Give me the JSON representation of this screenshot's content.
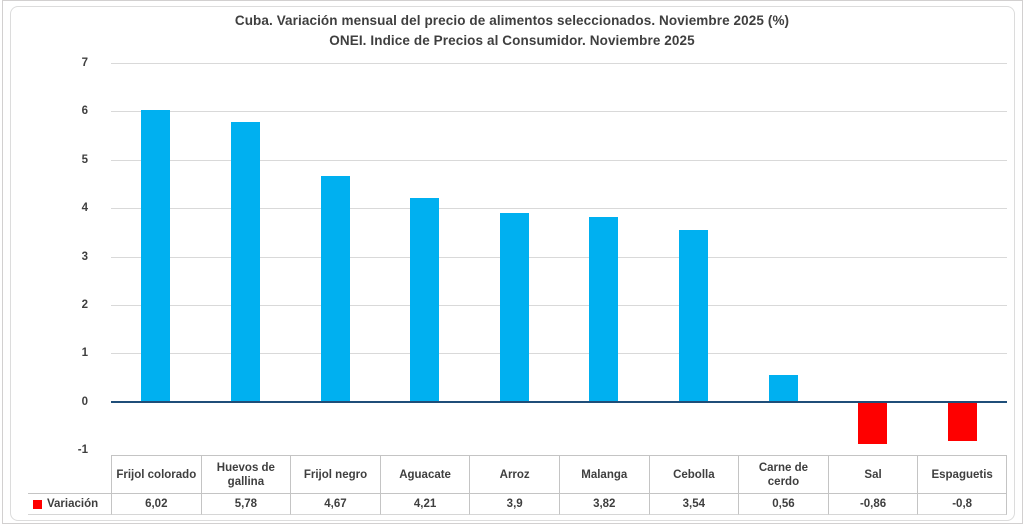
{
  "chart_data": {
    "type": "bar",
    "title": "Cuba. Variación mensual del precio de alimentos seleccionados. Noviembre 2025 (%)",
    "subtitle": "ONEI. Indice de Precios al Consumidor. Noviembre 2025",
    "series_name": "Variación",
    "categories": [
      "Frijol colorado",
      "Huevos de gallina",
      "Frijol negro",
      "Aguacate",
      "Arroz",
      "Malanga",
      "Cebolla",
      "Carne de cerdo",
      "Sal",
      "Espaguetis"
    ],
    "values": [
      6.02,
      5.78,
      4.67,
      4.21,
      3.9,
      3.82,
      3.54,
      0.56,
      -0.86,
      -0.8
    ],
    "values_display": [
      "6,02",
      "5,78",
      "4,67",
      "4,21",
      "3,9",
      "3,82",
      "3,54",
      "0,56",
      "-0,86",
      "-0,8"
    ],
    "ylabel": "",
    "xlabel": "",
    "ylim": [
      -1,
      7
    ],
    "yticks": [
      7,
      6,
      5,
      4,
      3,
      2,
      1,
      0,
      -1
    ],
    "grid": true,
    "legend_position": "data-table-left",
    "colors": {
      "positive_bar": "#00b0f0",
      "negative_bar": "#fe0000",
      "legend_marker": "#ff0000",
      "zero_axis_line": "#1f4e79",
      "gridline": "#d9d9d9",
      "text": "#3f3f3f",
      "table_border": "#c4c4c4"
    }
  }
}
